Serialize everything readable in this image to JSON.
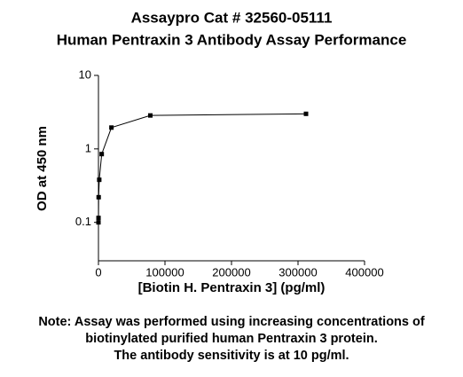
{
  "chart_data": {
    "type": "line",
    "title": "Assaypro Cat # 32560-05111",
    "subtitle": "Human Pentraxin 3 Antibody Assay Performance",
    "x_label": "[Biotin H. Pentraxin 3] (pg/ml)",
    "y_label": "OD at 450 nm",
    "x": [
      20,
      80,
      300,
      1200,
      4900,
      19500,
      78000,
      312000
    ],
    "series": [
      {
        "name": "OD",
        "color": "#000000",
        "values": [
          0.1,
          0.115,
          0.22,
          0.38,
          0.85,
          1.95,
          2.85,
          3.0
        ]
      }
    ],
    "xlim": [
      0,
      400000
    ],
    "xticks": [
      0,
      100000,
      200000,
      300000,
      400000
    ],
    "ylim": [
      0.03,
      10
    ],
    "yticks": [
      0.1,
      1,
      10
    ],
    "y_scale": "log",
    "grid": false,
    "annotations": [
      "Note: Assay was performed using increasing concentrations of",
      "biotinylated purified human Pentraxin 3 protein.",
      "The antibody sensitivity is at 10 pg/ml."
    ]
  }
}
